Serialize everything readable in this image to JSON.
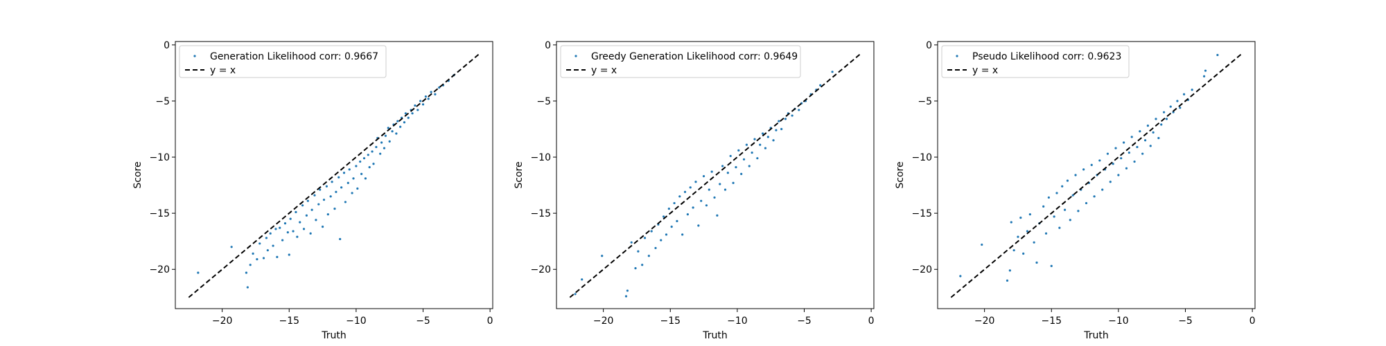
{
  "chart_data": [
    {
      "type": "scatter",
      "title": "",
      "xlabel": "Truth",
      "ylabel": "Score",
      "xlim": [
        -23.5,
        0.2
      ],
      "ylim": [
        -23.5,
        0.3
      ],
      "xticks": [
        -20,
        -15,
        -10,
        -5,
        0
      ],
      "yticks": [
        0,
        -5,
        -10,
        -15,
        -20
      ],
      "grid": false,
      "legend_position": "upper-left",
      "series": [
        {
          "name": "Generation Likelihood corr: 0.9667",
          "color": "#1f77b4",
          "points": [
            [
              -21.8,
              -20.3
            ],
            [
              -19.3,
              -18.0
            ],
            [
              -18.2,
              -20.3
            ],
            [
              -18.1,
              -21.6
            ],
            [
              -17.9,
              -19.6
            ],
            [
              -17.7,
              -18.6
            ],
            [
              -17.4,
              -19.1
            ],
            [
              -17.2,
              -17.7
            ],
            [
              -16.9,
              -19.0
            ],
            [
              -16.7,
              -17.2
            ],
            [
              -16.6,
              -18.3
            ],
            [
              -16.4,
              -16.8
            ],
            [
              -16.2,
              -17.9
            ],
            [
              -16.0,
              -16.4
            ],
            [
              -15.9,
              -18.9
            ],
            [
              -15.7,
              -16.3
            ],
            [
              -15.5,
              -17.4
            ],
            [
              -15.3,
              -15.9
            ],
            [
              -15.1,
              -16.7
            ],
            [
              -15.0,
              -18.7
            ],
            [
              -14.9,
              -15.5
            ],
            [
              -14.7,
              -16.6
            ],
            [
              -14.5,
              -14.9
            ],
            [
              -14.4,
              -17.1
            ],
            [
              -14.2,
              -15.8
            ],
            [
              -14.0,
              -14.3
            ],
            [
              -13.9,
              -16.4
            ],
            [
              -13.7,
              -15.2
            ],
            [
              -13.6,
              -13.9
            ],
            [
              -13.4,
              -16.8
            ],
            [
              -13.3,
              -14.7
            ],
            [
              -13.1,
              -13.4
            ],
            [
              -13.0,
              -15.6
            ],
            [
              -12.8,
              -14.2
            ],
            [
              -12.7,
              -12.9
            ],
            [
              -12.5,
              -16.2
            ],
            [
              -12.4,
              -13.8
            ],
            [
              -12.2,
              -12.6
            ],
            [
              -12.1,
              -15.1
            ],
            [
              -11.9,
              -13.5
            ],
            [
              -11.8,
              -12.2
            ],
            [
              -11.6,
              -14.6
            ],
            [
              -11.5,
              -13.1
            ],
            [
              -11.3,
              -11.8
            ],
            [
              -11.2,
              -17.3
            ],
            [
              -11.1,
              -12.7
            ],
            [
              -10.9,
              -11.4
            ],
            [
              -10.8,
              -14.0
            ],
            [
              -10.6,
              -12.3
            ],
            [
              -10.5,
              -11.1
            ],
            [
              -10.3,
              -13.2
            ],
            [
              -10.2,
              -11.9
            ],
            [
              -10.0,
              -10.8
            ],
            [
              -9.9,
              -12.8
            ],
            [
              -9.7,
              -10.4
            ],
            [
              -9.6,
              -11.5
            ],
            [
              -9.4,
              -10.1
            ],
            [
              -9.3,
              -11.9
            ],
            [
              -9.1,
              -9.8
            ],
            [
              -9.0,
              -10.9
            ],
            [
              -8.8,
              -9.5
            ],
            [
              -8.7,
              -10.6
            ],
            [
              -8.5,
              -9.1
            ],
            [
              -8.4,
              -8.3
            ],
            [
              -8.2,
              -9.7
            ],
            [
              -8.1,
              -8.7
            ],
            [
              -7.9,
              -9.2
            ],
            [
              -7.8,
              -8.1
            ],
            [
              -7.6,
              -7.4
            ],
            [
              -7.5,
              -8.6
            ],
            [
              -7.3,
              -7.7
            ],
            [
              -7.2,
              -7.1
            ],
            [
              -7.0,
              -7.9
            ],
            [
              -6.9,
              -6.8
            ],
            [
              -6.7,
              -7.3
            ],
            [
              -6.6,
              -6.5
            ],
            [
              -6.4,
              -6.9
            ],
            [
              -6.3,
              -6.1
            ],
            [
              -6.1,
              -6.5
            ],
            [
              -5.9,
              -5.8
            ],
            [
              -5.8,
              -6.1
            ],
            [
              -5.6,
              -5.4
            ],
            [
              -5.4,
              -5.8
            ],
            [
              -5.2,
              -5.0
            ],
            [
              -5.0,
              -5.3
            ],
            [
              -4.8,
              -4.6
            ],
            [
              -4.6,
              -4.8
            ],
            [
              -4.4,
              -4.2
            ],
            [
              -4.1,
              -4.4
            ],
            [
              -3.8,
              -3.8
            ],
            [
              -3.5,
              -3.6
            ],
            [
              -3.1,
              -3.2
            ],
            [
              -2.7,
              -2.7
            ]
          ]
        },
        {
          "name": "y = x",
          "style": "dashed",
          "color": "#000000",
          "points": [
            [
              -22.5,
              -22.5
            ],
            [
              -0.8,
              -0.8
            ]
          ]
        }
      ]
    },
    {
      "type": "scatter",
      "title": "",
      "xlabel": "Truth",
      "ylabel": "Score",
      "xlim": [
        -23.5,
        0.2
      ],
      "ylim": [
        -23.5,
        0.3
      ],
      "xticks": [
        -20,
        -15,
        -10,
        -5,
        0
      ],
      "yticks": [
        0,
        -5,
        -10,
        -15,
        -20
      ],
      "grid": false,
      "legend_position": "upper-left",
      "series": [
        {
          "name": "Greedy Generation Likelihood corr: 0.9649",
          "color": "#1f77b4",
          "points": [
            [
              -22.1,
              -22.2
            ],
            [
              -21.6,
              -20.9
            ],
            [
              -20.1,
              -18.8
            ],
            [
              -18.3,
              -22.4
            ],
            [
              -18.2,
              -21.9
            ],
            [
              -17.9,
              -17.6
            ],
            [
              -17.6,
              -19.9
            ],
            [
              -17.4,
              -18.4
            ],
            [
              -17.1,
              -19.6
            ],
            [
              -16.9,
              -17.2
            ],
            [
              -16.6,
              -18.8
            ],
            [
              -16.4,
              -16.6
            ],
            [
              -16.1,
              -18.1
            ],
            [
              -15.9,
              -16.0
            ],
            [
              -15.7,
              -17.4
            ],
            [
              -15.5,
              -15.3
            ],
            [
              -15.3,
              -16.9
            ],
            [
              -15.1,
              -14.6
            ],
            [
              -14.9,
              -16.2
            ],
            [
              -14.7,
              -14.1
            ],
            [
              -14.5,
              -15.7
            ],
            [
              -14.3,
              -13.5
            ],
            [
              -14.1,
              -16.9
            ],
            [
              -13.9,
              -13.1
            ],
            [
              -13.7,
              -15.1
            ],
            [
              -13.5,
              -12.7
            ],
            [
              -13.3,
              -14.5
            ],
            [
              -13.1,
              -12.2
            ],
            [
              -12.9,
              -16.1
            ],
            [
              -12.7,
              -13.9
            ],
            [
              -12.5,
              -11.7
            ],
            [
              -12.3,
              -14.3
            ],
            [
              -12.1,
              -12.9
            ],
            [
              -11.9,
              -11.3
            ],
            [
              -11.7,
              -13.6
            ],
            [
              -11.5,
              -15.2
            ],
            [
              -11.3,
              -12.4
            ],
            [
              -11.1,
              -10.8
            ],
            [
              -10.9,
              -12.9
            ],
            [
              -10.7,
              -11.4
            ],
            [
              -10.5,
              -9.9
            ],
            [
              -10.3,
              -12.3
            ],
            [
              -10.1,
              -10.9
            ],
            [
              -9.9,
              -9.4
            ],
            [
              -9.7,
              -11.5
            ],
            [
              -9.5,
              -10.2
            ],
            [
              -9.3,
              -8.9
            ],
            [
              -9.1,
              -10.8
            ],
            [
              -8.9,
              -9.6
            ],
            [
              -8.7,
              -8.4
            ],
            [
              -8.5,
              -10.1
            ],
            [
              -8.3,
              -8.9
            ],
            [
              -8.1,
              -7.9
            ],
            [
              -7.9,
              -9.2
            ],
            [
              -7.7,
              -8.2
            ],
            [
              -7.5,
              -7.4
            ],
            [
              -7.3,
              -8.5
            ],
            [
              -7.1,
              -7.6
            ],
            [
              -6.9,
              -6.8
            ],
            [
              -6.7,
              -7.5
            ],
            [
              -6.4,
              -6.6
            ],
            [
              -6.2,
              -6.1
            ],
            [
              -5.9,
              -6.3
            ],
            [
              -5.7,
              -5.7
            ],
            [
              -5.4,
              -5.8
            ],
            [
              -5.2,
              -5.2
            ],
            [
              -4.9,
              -5.0
            ],
            [
              -4.5,
              -4.4
            ],
            [
              -4.1,
              -4.0
            ],
            [
              -3.8,
              -3.6
            ],
            [
              -2.9,
              -2.4
            ]
          ]
        },
        {
          "name": "y = x",
          "style": "dashed",
          "color": "#000000",
          "points": [
            [
              -22.5,
              -22.5
            ],
            [
              -0.8,
              -0.8
            ]
          ]
        }
      ]
    },
    {
      "type": "scatter",
      "title": "",
      "xlabel": "Truth",
      "ylabel": "Score",
      "xlim": [
        -23.5,
        0.2
      ],
      "ylim": [
        -23.5,
        0.3
      ],
      "xticks": [
        -20,
        -15,
        -10,
        -5,
        0
      ],
      "yticks": [
        0,
        -5,
        -10,
        -15,
        -20
      ],
      "grid": false,
      "legend_position": "upper-left",
      "series": [
        {
          "name": "Pseudo Likelihood corr: 0.9623",
          "color": "#1f77b4",
          "points": [
            [
              -21.8,
              -20.6
            ],
            [
              -20.2,
              -17.8
            ],
            [
              -18.3,
              -21.0
            ],
            [
              -18.1,
              -20.1
            ],
            [
              -18.0,
              -15.8
            ],
            [
              -17.8,
              -18.3
            ],
            [
              -17.5,
              -17.1
            ],
            [
              -17.3,
              -15.4
            ],
            [
              -17.1,
              -18.6
            ],
            [
              -16.8,
              -16.6
            ],
            [
              -16.6,
              -15.1
            ],
            [
              -16.3,
              -17.6
            ],
            [
              -16.1,
              -19.4
            ],
            [
              -15.9,
              -15.9
            ],
            [
              -15.6,
              -14.4
            ],
            [
              -15.4,
              -16.8
            ],
            [
              -15.2,
              -13.6
            ],
            [
              -15.0,
              -19.7
            ],
            [
              -14.8,
              -15.3
            ],
            [
              -14.6,
              -13.2
            ],
            [
              -14.4,
              -16.3
            ],
            [
              -14.2,
              -12.6
            ],
            [
              -14.0,
              -14.7
            ],
            [
              -13.8,
              -12.1
            ],
            [
              -13.6,
              -15.6
            ],
            [
              -13.4,
              -13.4
            ],
            [
              -13.2,
              -11.6
            ],
            [
              -13.0,
              -14.8
            ],
            [
              -12.8,
              -12.9
            ],
            [
              -12.6,
              -11.1
            ],
            [
              -12.4,
              -14.1
            ],
            [
              -12.2,
              -12.3
            ],
            [
              -12.0,
              -10.7
            ],
            [
              -11.8,
              -13.5
            ],
            [
              -11.6,
              -11.6
            ],
            [
              -11.4,
              -10.3
            ],
            [
              -11.2,
              -12.9
            ],
            [
              -11.0,
              -11.1
            ],
            [
              -10.8,
              -9.7
            ],
            [
              -10.6,
              -12.2
            ],
            [
              -10.4,
              -10.6
            ],
            [
              -10.2,
              -9.2
            ],
            [
              -10.0,
              -11.6
            ],
            [
              -9.8,
              -10.1
            ],
            [
              -9.6,
              -8.7
            ],
            [
              -9.4,
              -11.0
            ],
            [
              -9.2,
              -9.6
            ],
            [
              -9.0,
              -8.2
            ],
            [
              -8.8,
              -10.4
            ],
            [
              -8.6,
              -9.1
            ],
            [
              -8.4,
              -7.7
            ],
            [
              -8.2,
              -9.7
            ],
            [
              -8.0,
              -8.5
            ],
            [
              -7.8,
              -7.2
            ],
            [
              -7.6,
              -9.0
            ],
            [
              -7.4,
              -7.8
            ],
            [
              -7.2,
              -6.6
            ],
            [
              -7.0,
              -8.3
            ],
            [
              -6.8,
              -7.1
            ],
            [
              -6.6,
              -6.0
            ],
            [
              -6.4,
              -6.6
            ],
            [
              -6.1,
              -5.5
            ],
            [
              -5.9,
              -6.0
            ],
            [
              -5.6,
              -5.0
            ],
            [
              -5.4,
              -5.6
            ],
            [
              -5.1,
              -4.4
            ],
            [
              -4.8,
              -4.9
            ],
            [
              -4.5,
              -4.0
            ],
            [
              -3.6,
              -2.8
            ],
            [
              -3.5,
              -2.3
            ],
            [
              -2.6,
              -0.9
            ]
          ]
        },
        {
          "name": "y = x",
          "style": "dashed",
          "color": "#000000",
          "points": [
            [
              -22.5,
              -22.5
            ],
            [
              -0.8,
              -0.8
            ]
          ]
        }
      ]
    }
  ]
}
